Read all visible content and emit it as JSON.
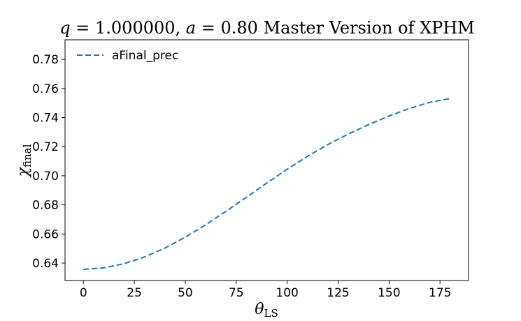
{
  "chart_data": {
    "type": "line",
    "title": {
      "q_symbol": "q",
      "q_value": "1.000000",
      "a_symbol": "a",
      "a_value": "0.80",
      "rest": "Master Version of XPHM"
    },
    "xlabel": {
      "symbol": "θ",
      "subscript": "LS"
    },
    "ylabel": {
      "symbol": "χ",
      "subscript": "final"
    },
    "xlim": [
      -9,
      189
    ],
    "ylim": [
      0.628,
      0.7935
    ],
    "xticks": [
      0,
      25,
      50,
      75,
      100,
      125,
      150,
      175
    ],
    "yticks": [
      0.64,
      0.66,
      0.68,
      0.7,
      0.72,
      0.74,
      0.76,
      0.78
    ],
    "ytick_labels": [
      "0.64",
      "0.66",
      "0.68",
      "0.70",
      "0.72",
      "0.74",
      "0.76",
      "0.78"
    ],
    "grid": false,
    "legend_position": "top-left",
    "series": [
      {
        "name": "aFinal_prec",
        "color": "#1f77b4",
        "linestyle": "dashed",
        "x": [
          0,
          10,
          20,
          30,
          40,
          50,
          60,
          70,
          80,
          90,
          100,
          110,
          120,
          130,
          140,
          150,
          160,
          170,
          180
        ],
        "y": [
          0.6357,
          0.6367,
          0.6396,
          0.6442,
          0.6503,
          0.6578,
          0.6663,
          0.6756,
          0.6852,
          0.695,
          0.7045,
          0.7134,
          0.7215,
          0.7287,
          0.7352,
          0.7411,
          0.7463,
          0.7505,
          0.7531
        ]
      }
    ]
  }
}
